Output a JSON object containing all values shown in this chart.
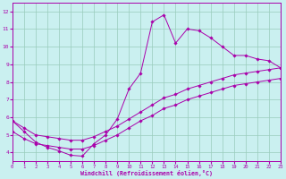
{
  "xlabel": "Windchill (Refroidissement éolien,°C)",
  "xlim": [
    0,
    23
  ],
  "ylim": [
    3.5,
    12.5
  ],
  "bg_color": "#caf0f0",
  "line_color": "#aa00aa",
  "grid_color": "#99ccbb",
  "curve1_x": [
    0,
    1,
    2,
    3,
    4,
    5,
    6,
    7,
    8,
    9,
    10,
    11,
    12,
    13,
    14,
    15,
    16,
    17,
    18,
    19,
    20,
    21,
    22,
    23
  ],
  "curve1_y": [
    5.8,
    5.2,
    4.6,
    4.3,
    4.1,
    3.85,
    3.8,
    4.5,
    5.0,
    5.9,
    7.6,
    8.5,
    11.4,
    11.8,
    10.2,
    11.0,
    10.9,
    10.5,
    10.0,
    9.5,
    9.5,
    9.3,
    9.2,
    8.8
  ],
  "curve2_x": [
    0,
    1,
    2,
    3,
    4,
    5,
    6,
    7,
    8,
    9,
    10,
    11,
    12,
    13,
    14,
    15,
    16,
    17,
    18,
    19,
    20,
    21,
    22,
    23
  ],
  "curve2_y": [
    5.8,
    5.4,
    5.0,
    4.9,
    4.8,
    4.7,
    4.7,
    4.9,
    5.2,
    5.5,
    5.9,
    6.3,
    6.7,
    7.1,
    7.3,
    7.6,
    7.8,
    8.0,
    8.2,
    8.4,
    8.5,
    8.6,
    8.7,
    8.8
  ],
  "curve3_x": [
    0,
    1,
    2,
    3,
    4,
    5,
    6,
    7,
    8,
    9,
    10,
    11,
    12,
    13,
    14,
    15,
    16,
    17,
    18,
    19,
    20,
    21,
    22,
    23
  ],
  "curve3_y": [
    5.2,
    4.8,
    4.5,
    4.4,
    4.3,
    4.2,
    4.2,
    4.4,
    4.7,
    5.0,
    5.4,
    5.8,
    6.1,
    6.5,
    6.7,
    7.0,
    7.2,
    7.4,
    7.6,
    7.8,
    7.9,
    8.0,
    8.1,
    8.2
  ]
}
